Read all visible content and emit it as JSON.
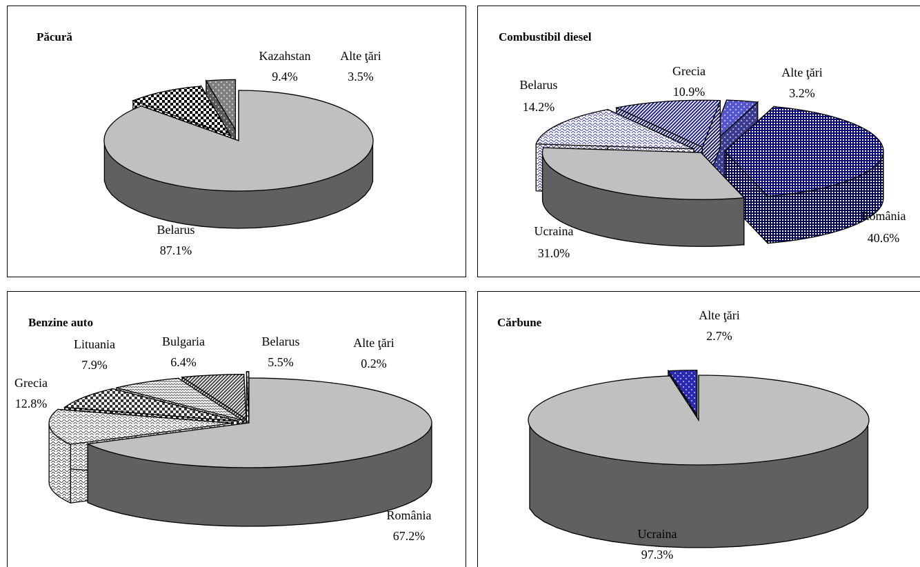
{
  "chart_data": [
    {
      "type": "pie",
      "title": "Păcură",
      "slices": [
        {
          "label": "Belarus",
          "value": 87.1,
          "value_label": "87.1%",
          "fill": "#c0c0c0",
          "pattern": "solid"
        },
        {
          "label": "Kazahstan",
          "value": 9.4,
          "value_label": "9.4%",
          "fill": "#000000",
          "pattern": "checker"
        },
        {
          "label": "Alte ţări",
          "value": 3.5,
          "value_label": "3.5%",
          "fill": "#808080",
          "pattern": "dots"
        }
      ]
    },
    {
      "type": "pie",
      "title": "Combustibil diesel",
      "slices": [
        {
          "label": "România",
          "value": 40.6,
          "value_label": "40.6%",
          "fill": "#0a0a7a",
          "pattern": "grid"
        },
        {
          "label": "Ucraina",
          "value": 31.0,
          "value_label": "31.0%",
          "fill": "#c0c0c0",
          "pattern": "solid"
        },
        {
          "label": "Belarus",
          "value": 14.2,
          "value_label": "14.2%",
          "fill": "#3a3aa8",
          "pattern": "wave"
        },
        {
          "label": "Grecia",
          "value": 10.9,
          "value_label": "10.9%",
          "fill": "#1e1e9c",
          "pattern": "diagonal"
        },
        {
          "label": "Alte ţări",
          "value": 3.2,
          "value_label": "3.2%",
          "fill": "#5555cc",
          "pattern": "dots"
        }
      ]
    },
    {
      "type": "pie",
      "title": "Benzine auto",
      "slices": [
        {
          "label": "România",
          "value": 67.2,
          "value_label": "67.2%",
          "fill": "#c0c0c0",
          "pattern": "solid"
        },
        {
          "label": "Grecia",
          "value": 12.8,
          "value_label": "12.8%",
          "fill": "#555555",
          "pattern": "wave"
        },
        {
          "label": "Lituania",
          "value": 7.9,
          "value_label": "7.9%",
          "fill": "#333333",
          "pattern": "checker"
        },
        {
          "label": "Bulgaria",
          "value": 6.4,
          "value_label": "6.4%",
          "fill": "#666666",
          "pattern": "zigzag"
        },
        {
          "label": "Belarus",
          "value": 5.5,
          "value_label": "5.5%",
          "fill": "#444444",
          "pattern": "diagonal"
        },
        {
          "label": "Alte ţări",
          "value": 0.2,
          "value_label": "0.2%",
          "fill": "#777777",
          "pattern": "cross"
        }
      ]
    },
    {
      "type": "pie",
      "title": "Cărbune",
      "slices": [
        {
          "label": "Ucraina",
          "value": 97.3,
          "value_label": "97.3%",
          "fill": "#c0c0c0",
          "pattern": "solid"
        },
        {
          "label": "Alte ţări",
          "value": 2.7,
          "value_label": "2.7%",
          "fill": "#2a2ab0",
          "pattern": "dots"
        }
      ]
    }
  ]
}
